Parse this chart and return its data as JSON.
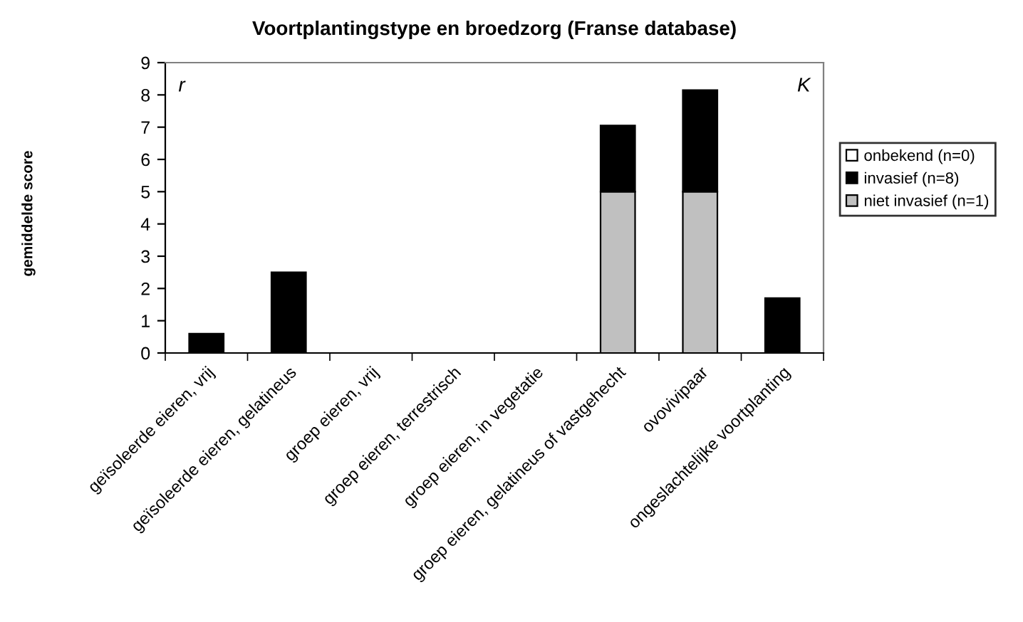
{
  "chart_data": {
    "type": "bar",
    "stacked": true,
    "title": "Voortplantingstype en broedzorg (Franse database)",
    "ylabel": "gemiddelde score",
    "categories": [
      "geïsoleerde eieren, vrij",
      "geïsoleerde eieren, gelatineus",
      "groep eieren, vrij",
      "groep eieren, terrestrisch",
      "groep eieren, in vegetatie",
      "groep eieren, gelatineus of vastgehecht",
      "ovovivipaar",
      "ongeslachtelijke voortplanting"
    ],
    "series": [
      {
        "name": "niet invasief (n=1)",
        "color": "#c0c0c0",
        "values": [
          0,
          0,
          0,
          0,
          0,
          5,
          5,
          0
        ]
      },
      {
        "name": "invasief (n=8)",
        "color": "#000000",
        "values": [
          0.6,
          2.5,
          0,
          0,
          0,
          2.05,
          3.15,
          1.7
        ]
      },
      {
        "name": "onbekend (n=0)",
        "color": "#ffffff",
        "values": [
          0,
          0,
          0,
          0,
          0,
          0,
          0,
          0
        ]
      }
    ],
    "ylim": [
      0,
      9
    ],
    "yticks": [
      0,
      1,
      2,
      3,
      4,
      5,
      6,
      7,
      8,
      9
    ],
    "grid": false,
    "legend": "right",
    "annotations": [
      "r",
      "K"
    ]
  }
}
